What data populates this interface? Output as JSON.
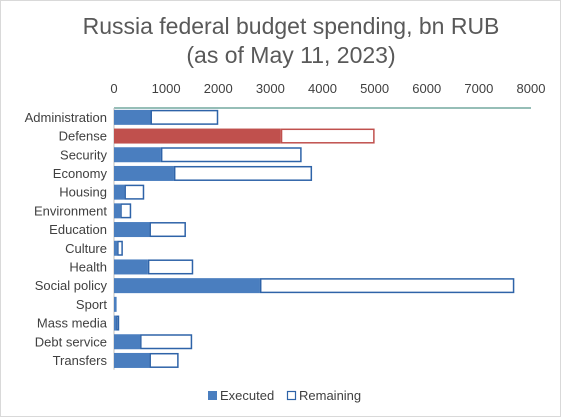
{
  "chart_data": {
    "type": "bar",
    "orientation": "horizontal",
    "stacked": true,
    "title_line1": "Russia federal budget spending, bn RUB",
    "title_line2": "(as of May 11, 2023)",
    "xlim": [
      0,
      8000
    ],
    "x_ticks": [
      "0",
      "1000",
      "2000",
      "3000",
      "4000",
      "5000",
      "6000",
      "7000",
      "8000"
    ],
    "x_tick_values": [
      0,
      1000,
      2000,
      3000,
      4000,
      5000,
      6000,
      7000,
      8000
    ],
    "x_axis_position": "top",
    "grid": false,
    "categories": [
      "Administration",
      "Defense",
      "Security",
      "Economy",
      "Housing",
      "Environment",
      "Education",
      "Culture",
      "Health",
      "Social policy",
      "Sport",
      "Mass media",
      "Debt service",
      "Transfers"
    ],
    "series": [
      {
        "name": "Executed",
        "values": [
          700,
          3200,
          900,
          1150,
          200,
          120,
          680,
          60,
          650,
          2800,
          50,
          40,
          500,
          680
        ]
      },
      {
        "name": "Remaining",
        "values": [
          1300,
          1800,
          2700,
          2650,
          380,
          210,
          700,
          110,
          870,
          4880,
          20,
          60,
          1000,
          560
        ]
      }
    ],
    "legend": [
      "Executed",
      "Remaining"
    ],
    "legend_position": "bottom",
    "colors": {
      "executed": "#4a7ebf",
      "executed_highlight": "#c0504d",
      "remaining_border": "#2e63a8",
      "remaining_border_highlight": "#c0504d",
      "axis_line": "#2e7d6f"
    },
    "highlight_category": "Defense"
  }
}
